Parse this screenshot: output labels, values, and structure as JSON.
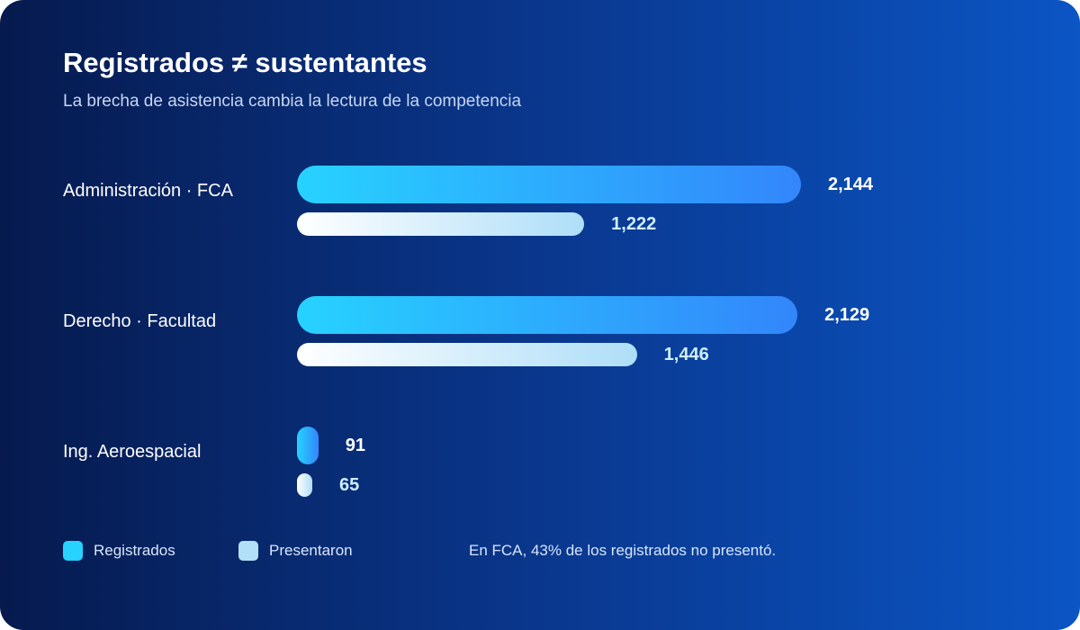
{
  "chart_data": {
    "type": "bar",
    "orientation": "horizontal",
    "title": "Registrados ≠ sustentantes",
    "subtitle": "La brecha de asistencia cambia la lectura de la competencia",
    "categories": [
      "Administración · FCA",
      "Derecho · Facultad",
      "Ing. Aeroespacial"
    ],
    "series": [
      {
        "name": "Registrados",
        "values": [
          2144,
          2129,
          91
        ],
        "labels": [
          "2,144",
          "2,129",
          "91"
        ],
        "color_start": "#27d2ff",
        "color_end": "#3386fb"
      },
      {
        "name": "Presentaron",
        "values": [
          1222,
          1446,
          65
        ],
        "labels": [
          "1,222",
          "1,446",
          "65"
        ],
        "color_start": "#ffffff",
        "color_end": "#aedef8"
      }
    ],
    "legend": {
      "placement": "bottom-left",
      "items": [
        {
          "name": "Registrados",
          "color": "#27d2ff"
        },
        {
          "name": "Presentaron",
          "color": "#b3e0f9"
        }
      ]
    },
    "annotation": "En FCA, 43% de los registrados no presentó.",
    "grid": false
  },
  "colors": {
    "background_start": "#061a4e",
    "background_end": "#0b55c4",
    "text": "#ffffff",
    "muted_text": "#c7d6f2"
  }
}
